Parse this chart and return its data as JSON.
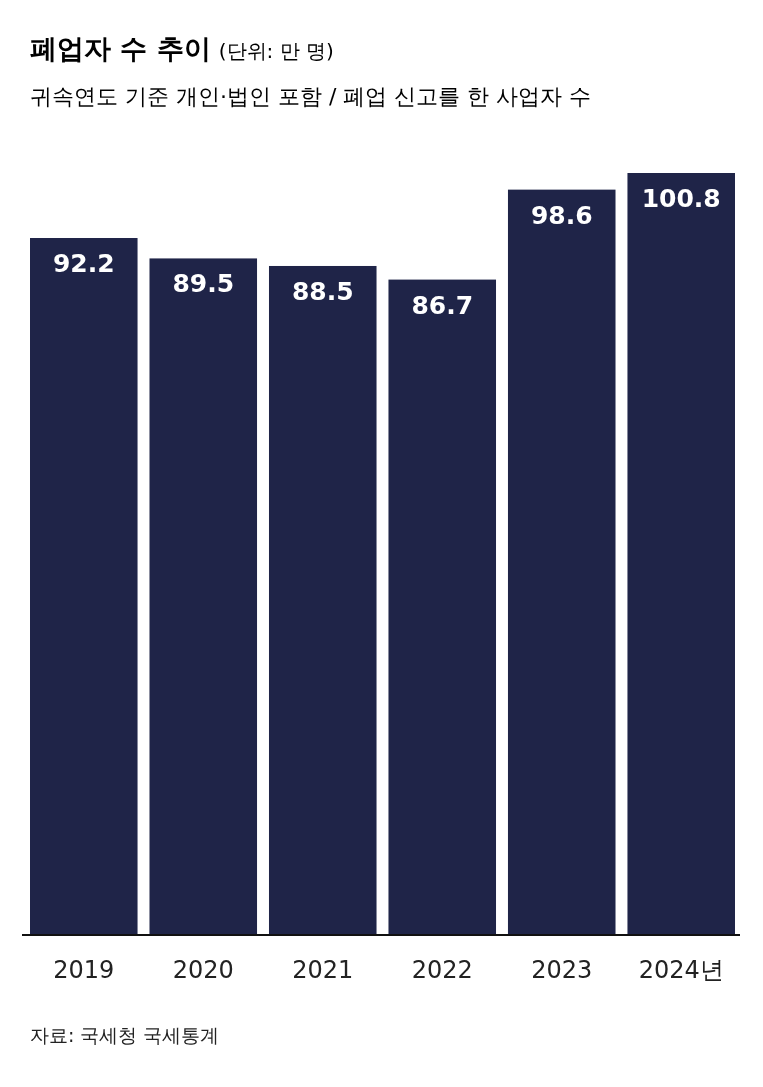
{
  "chart_data": {
    "type": "bar",
    "title": "폐업자 수 추이",
    "subtitle": "귀속연도 기준 개인·법인 포함 / 폐업 신고를 한 사업자 수",
    "categories": [
      "2019",
      "2020",
      "2021",
      "2022",
      "2023",
      "2024년"
    ],
    "values": [
      92.2,
      89.5,
      88.5,
      86.7,
      98.6,
      100.8
    ],
    "color": "#1f2448",
    "data_labels": true,
    "annotations": [
      "(단위: 만 명)",
      "자료: 국세청 국세통계"
    ]
  }
}
